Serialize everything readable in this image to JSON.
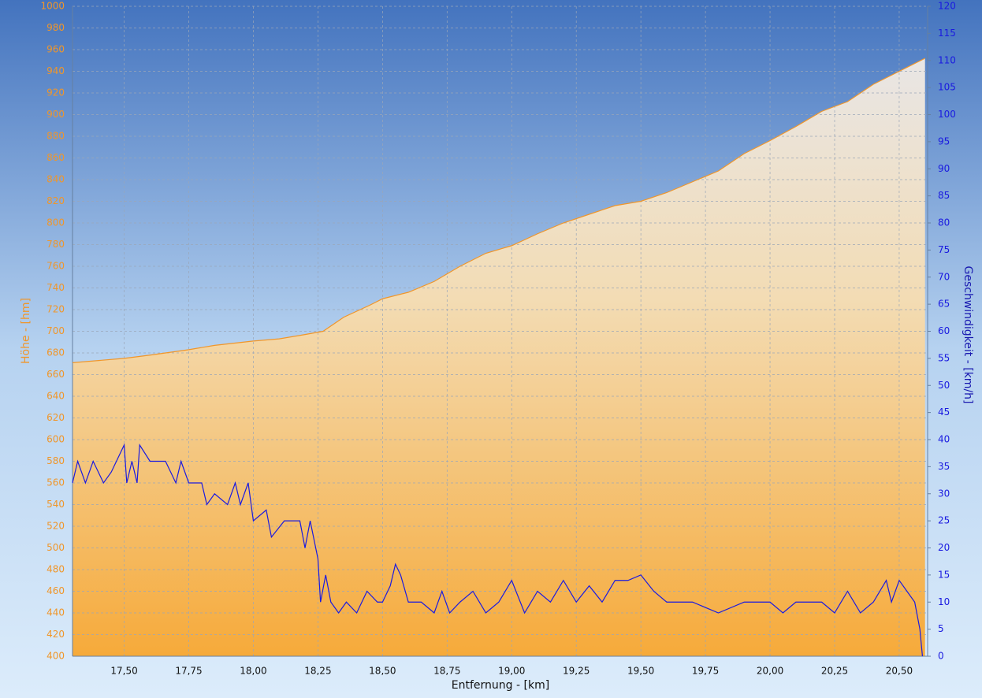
{
  "chart_data": {
    "type": "line",
    "x_label": "Entfernung - [km]",
    "y_label": "Höhe - [hm]",
    "y2_label": "Geschwindigkeit - [km/h]",
    "xlim": [
      17.3,
      20.61
    ],
    "xticks": [
      {
        "value": 17.5,
        "label": "17,50"
      },
      {
        "value": 17.75,
        "label": "17,75"
      },
      {
        "value": 18,
        "label": "18,00"
      },
      {
        "value": 18.25,
        "label": "18,25"
      },
      {
        "value": 18.5,
        "label": "18,50"
      },
      {
        "value": 18.75,
        "label": "18,75"
      },
      {
        "value": 19,
        "label": "19,00"
      },
      {
        "value": 19.25,
        "label": "19,25"
      },
      {
        "value": 19.5,
        "label": "19,50"
      },
      {
        "value": 19.75,
        "label": "19,75"
      },
      {
        "value": 20,
        "label": "20,00"
      },
      {
        "value": 20.25,
        "label": "20,25"
      },
      {
        "value": 20.5,
        "label": "20,50"
      }
    ],
    "ylim": [
      400,
      1000
    ],
    "yticks": [
      400,
      420,
      440,
      460,
      480,
      500,
      520,
      540,
      560,
      580,
      600,
      620,
      640,
      660,
      680,
      700,
      720,
      740,
      760,
      780,
      800,
      820,
      840,
      860,
      880,
      900,
      920,
      940,
      960,
      980,
      1000
    ],
    "y2lim": [
      0,
      120
    ],
    "y2ticks": [
      0,
      5,
      10,
      15,
      20,
      25,
      30,
      35,
      40,
      45,
      50,
      55,
      60,
      65,
      70,
      75,
      80,
      85,
      90,
      95,
      100,
      105,
      110,
      115,
      120
    ],
    "grid": true,
    "series": [
      {
        "color": "#f0962a",
        "fill": true,
        "axis": "y",
        "x": [
          17.3,
          17.5,
          17.6,
          17.75,
          17.85,
          18.0,
          18.1,
          18.2,
          18.27,
          18.35,
          18.45,
          18.5,
          18.6,
          18.7,
          18.8,
          18.9,
          19.0,
          19.1,
          19.2,
          19.3,
          19.4,
          19.5,
          19.6,
          19.7,
          19.8,
          19.9,
          20.0,
          20.1,
          20.2,
          20.3,
          20.4,
          20.5,
          20.6
        ],
        "values": [
          671,
          675,
          678,
          683,
          687,
          691,
          693,
          697,
          700,
          713,
          724,
          730,
          736,
          746,
          760,
          772,
          779,
          790,
          800,
          808,
          816,
          820,
          828,
          838,
          848,
          864,
          876,
          889,
          903,
          912,
          928,
          940,
          952
        ]
      },
      {
        "color": "#1a1ae0",
        "fill": false,
        "axis": "y2",
        "x": [
          17.3,
          17.32,
          17.35,
          17.38,
          17.42,
          17.45,
          17.5,
          17.51,
          17.53,
          17.55,
          17.56,
          17.6,
          17.66,
          17.7,
          17.72,
          17.75,
          17.8,
          17.82,
          17.85,
          17.9,
          17.93,
          17.95,
          17.98,
          18.0,
          18.05,
          18.07,
          18.12,
          18.18,
          18.2,
          18.22,
          18.25,
          18.26,
          18.28,
          18.3,
          18.33,
          18.36,
          18.4,
          18.44,
          18.48,
          18.5,
          18.53,
          18.55,
          18.57,
          18.6,
          18.65,
          18.7,
          18.73,
          18.76,
          18.8,
          18.85,
          18.9,
          18.95,
          19.0,
          19.05,
          19.1,
          19.15,
          19.2,
          19.25,
          19.3,
          19.35,
          19.4,
          19.45,
          19.5,
          19.55,
          19.6,
          19.7,
          19.8,
          19.9,
          20.0,
          20.05,
          20.1,
          20.2,
          20.25,
          20.3,
          20.35,
          20.4,
          20.45,
          20.47,
          20.5,
          20.53,
          20.56,
          20.58,
          20.59
        ],
        "values": [
          32,
          36,
          32,
          36,
          32,
          34,
          39,
          32,
          36,
          32,
          39,
          36,
          36,
          32,
          36,
          32,
          32,
          28,
          30,
          28,
          32,
          28,
          32,
          25,
          27,
          22,
          25,
          25,
          20,
          25,
          18,
          10,
          15,
          10,
          8,
          10,
          8,
          12,
          10,
          10,
          13,
          17,
          15,
          10,
          10,
          8,
          12,
          8,
          10,
          12,
          8,
          10,
          14,
          8,
          12,
          10,
          14,
          10,
          13,
          10,
          14,
          14,
          15,
          12,
          10,
          10,
          8,
          10,
          10,
          8,
          10,
          10,
          8,
          12,
          8,
          10,
          14,
          10,
          14,
          12,
          10,
          5,
          0
        ]
      }
    ]
  }
}
